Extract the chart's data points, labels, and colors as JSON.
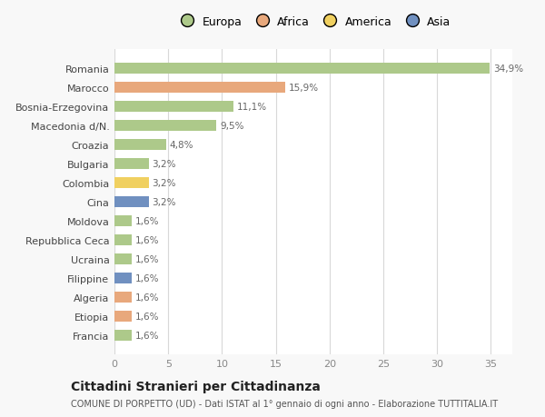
{
  "countries": [
    "Romania",
    "Marocco",
    "Bosnia-Erzegovina",
    "Macedonia d/N.",
    "Croazia",
    "Bulgaria",
    "Colombia",
    "Cina",
    "Moldova",
    "Repubblica Ceca",
    "Ucraina",
    "Filippine",
    "Algeria",
    "Etiopia",
    "Francia"
  ],
  "values": [
    34.9,
    15.9,
    11.1,
    9.5,
    4.8,
    3.2,
    3.2,
    3.2,
    1.6,
    1.6,
    1.6,
    1.6,
    1.6,
    1.6,
    1.6
  ],
  "labels": [
    "34,9%",
    "15,9%",
    "11,1%",
    "9,5%",
    "4,8%",
    "3,2%",
    "3,2%",
    "3,2%",
    "1,6%",
    "1,6%",
    "1,6%",
    "1,6%",
    "1,6%",
    "1,6%",
    "1,6%"
  ],
  "colors": [
    "#adc98a",
    "#e8a87c",
    "#adc98a",
    "#adc98a",
    "#adc98a",
    "#adc98a",
    "#f0d060",
    "#7090c0",
    "#adc98a",
    "#adc98a",
    "#adc98a",
    "#7090c0",
    "#e8a87c",
    "#e8a87c",
    "#adc98a"
  ],
  "legend_labels": [
    "Europa",
    "Africa",
    "America",
    "Asia"
  ],
  "legend_colors": [
    "#adc98a",
    "#e8a87c",
    "#f0d060",
    "#7090c0"
  ],
  "xlim": [
    0,
    37
  ],
  "xticks": [
    0,
    5,
    10,
    15,
    20,
    25,
    30,
    35
  ],
  "title": "Cittadini Stranieri per Cittadinanza",
  "subtitle": "COMUNE DI PORPETTO (UD) - Dati ISTAT al 1° gennaio di ogni anno - Elaborazione TUTTITALIA.IT",
  "bg_color": "#f8f8f8",
  "plot_bg_color": "#ffffff",
  "grid_color": "#d8d8d8",
  "label_color": "#666666",
  "text_color": "#888888"
}
